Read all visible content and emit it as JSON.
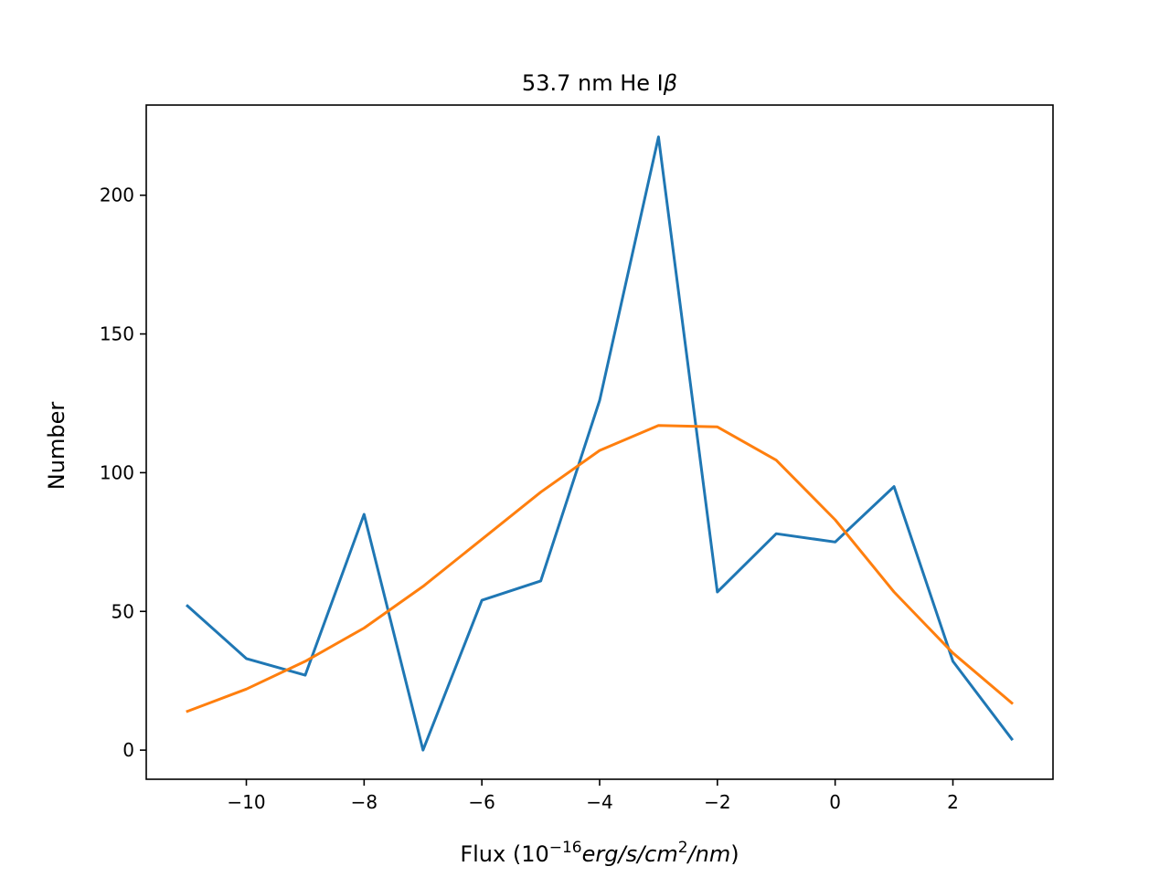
{
  "chart_data": {
    "type": "line",
    "title": "53.7 nm He I",
    "title_symbol": "β",
    "xlabel": {
      "prefix": "Flux (10",
      "exponent": "−16",
      "units_a": "erg/s/cm",
      "units_sup": "2",
      "units_b": "/nm",
      "suffix": ")"
    },
    "ylabel": "Number",
    "xlim": [
      -11.7,
      3.7
    ],
    "ylim": [
      -10.5,
      232.5
    ],
    "x_ticks": [
      -10,
      -8,
      -6,
      -4,
      -2,
      0,
      2
    ],
    "x_tick_labels": [
      "−10",
      "−8",
      "−6",
      "−4",
      "−2",
      "0",
      "2"
    ],
    "y_ticks": [
      0,
      50,
      100,
      150,
      200
    ],
    "y_tick_labels": [
      "0",
      "50",
      "100",
      "150",
      "200"
    ],
    "grid": false,
    "series": [
      {
        "color": "#1f77b4",
        "x": [
          -11,
          -10,
          -9,
          -8,
          -7,
          -6,
          -5,
          -4,
          -3,
          -2,
          -1,
          0,
          1,
          2,
          3
        ],
        "y": [
          52,
          33,
          27,
          85,
          0,
          54,
          61,
          126,
          221,
          57,
          78,
          75,
          95,
          32,
          4
        ]
      },
      {
        "color": "#ff7f0e",
        "x": [
          -11,
          -10,
          -9,
          -8,
          -7,
          -6,
          -5,
          -4,
          -3,
          -2,
          -1,
          0,
          1,
          2,
          3
        ],
        "y": [
          14,
          22,
          32,
          44,
          59,
          76,
          93,
          108,
          117,
          116.5,
          104.5,
          83,
          57,
          35,
          17
        ]
      }
    ]
  }
}
